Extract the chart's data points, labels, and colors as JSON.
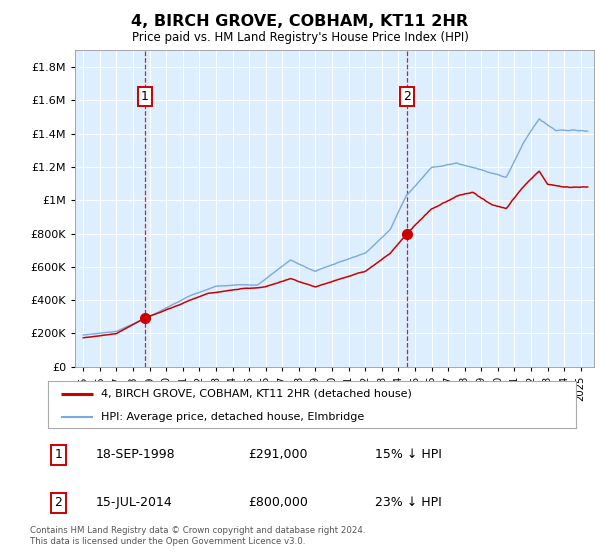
{
  "title": "4, BIRCH GROVE, COBHAM, KT11 2HR",
  "subtitle": "Price paid vs. HM Land Registry's House Price Index (HPI)",
  "legend_line1": "4, BIRCH GROVE, COBHAM, KT11 2HR (detached house)",
  "legend_line2": "HPI: Average price, detached house, Elmbridge",
  "annotation1_date": "18-SEP-1998",
  "annotation1_price": "£291,000",
  "annotation1_hpi": "15% ↓ HPI",
  "annotation2_date": "15-JUL-2014",
  "annotation2_price": "£800,000",
  "annotation2_hpi": "23% ↓ HPI",
  "footer": "Contains HM Land Registry data © Crown copyright and database right 2024.\nThis data is licensed under the Open Government Licence v3.0.",
  "red_color": "#cc0000",
  "blue_color": "#7aaadd",
  "bg_color": "#ddeeff",
  "sale1_year": 1998.72,
  "sale1_value": 291000,
  "sale2_year": 2014.54,
  "sale2_value": 800000,
  "ylim": [
    0,
    1900000
  ],
  "xlim_start": 1994.5,
  "xlim_end": 2025.8
}
